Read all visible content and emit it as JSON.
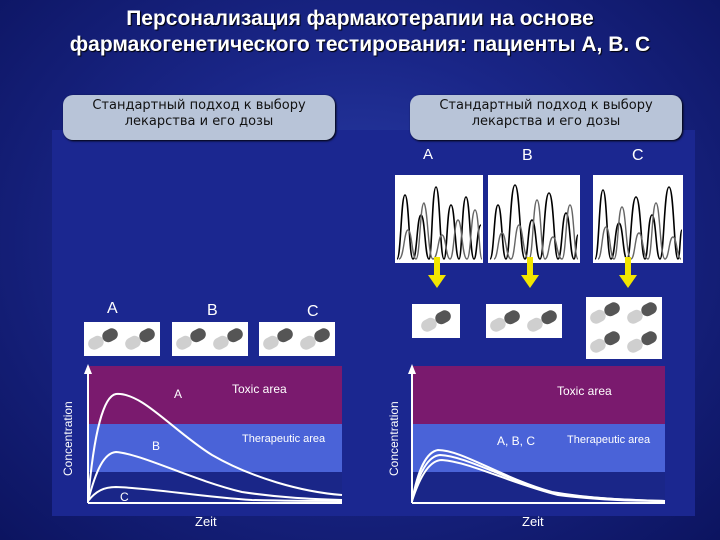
{
  "slide": {
    "title_line1": "Персонализация фармакотерапии на основе",
    "title_line2": "фармакогенетического  тестирования: пациенты А, В. С"
  },
  "left_box": {
    "line1": "Стандартный подход к выбору",
    "line2": "лекарства и его дозы"
  },
  "right_box": {
    "line1": "Стандартный подход к выбору",
    "line2": "лекарства и его дозы"
  },
  "left_panel": {
    "patient_labels": [
      "A",
      "B",
      "C"
    ],
    "y_axis_label": "Concentration",
    "x_axis_label": "Zeit",
    "zones": {
      "toxic": "Toxic area",
      "therapeutic": "Therapeutic area"
    },
    "curve_labels": [
      "A",
      "B",
      "C"
    ]
  },
  "right_panel": {
    "genotype_labels": [
      "A",
      "B",
      "C"
    ],
    "y_axis_label": "Concentration",
    "x_axis_label": "Zeit",
    "zones": {
      "toxic": "Toxic area",
      "therapeutic": "Therapeutic area"
    },
    "curve_label": "A, B, C"
  },
  "colors": {
    "toxic_zone": "#7a1a6e",
    "therapeutic_zone": "#4a63d8",
    "arrow": "#f2e600",
    "title": "#ffffff"
  }
}
